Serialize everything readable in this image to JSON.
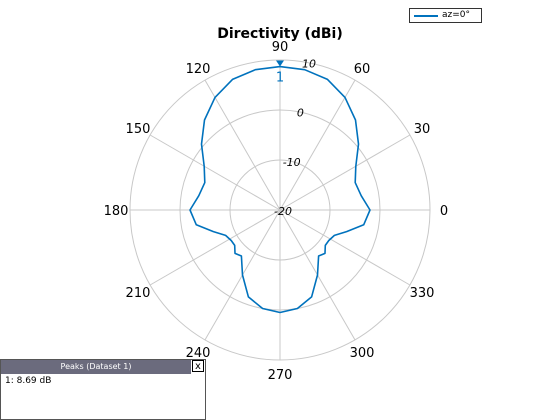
{
  "chart_data": {
    "type": "polar-line",
    "title": "Directivity (dBi)",
    "angle_ticks": [
      0,
      30,
      60,
      90,
      120,
      150,
      180,
      210,
      240,
      270,
      300,
      330
    ],
    "radial_ticks": [
      -20,
      -10,
      0,
      10
    ],
    "radial_range": [
      -20,
      10
    ],
    "grid": true,
    "legend_position": "top-right",
    "series": [
      {
        "name": "az=0°",
        "color": "#0072bd",
        "points": [
          {
            "angle": 0,
            "value": -2
          },
          {
            "angle": 10,
            "value": -3.5
          },
          {
            "angle": 20,
            "value": -4
          },
          {
            "angle": 30,
            "value": -2.5
          },
          {
            "angle": 40,
            "value": 0.5
          },
          {
            "angle": 50,
            "value": 3.5
          },
          {
            "angle": 60,
            "value": 6
          },
          {
            "angle": 70,
            "value": 7.8
          },
          {
            "angle": 80,
            "value": 8.5
          },
          {
            "angle": 90,
            "value": 8.69
          },
          {
            "angle": 100,
            "value": 8.5
          },
          {
            "angle": 110,
            "value": 7.8
          },
          {
            "angle": 120,
            "value": 6
          },
          {
            "angle": 130,
            "value": 3.5
          },
          {
            "angle": 140,
            "value": 0.5
          },
          {
            "angle": 150,
            "value": -2.5
          },
          {
            "angle": 160,
            "value": -4
          },
          {
            "angle": 170,
            "value": -3.5
          },
          {
            "angle": 180,
            "value": -2
          },
          {
            "angle": 190,
            "value": -3
          },
          {
            "angle": 198,
            "value": -6
          },
          {
            "angle": 205,
            "value": -8
          },
          {
            "angle": 212,
            "value": -8.5
          },
          {
            "angle": 218,
            "value": -8.5
          },
          {
            "angle": 224,
            "value": -7.5
          },
          {
            "angle": 230,
            "value": -8
          },
          {
            "angle": 240,
            "value": -5
          },
          {
            "angle": 250,
            "value": -1.5
          },
          {
            "angle": 260,
            "value": 0
          },
          {
            "angle": 270,
            "value": 0.5
          },
          {
            "angle": 280,
            "value": 0
          },
          {
            "angle": 290,
            "value": -1.5
          },
          {
            "angle": 300,
            "value": -5
          },
          {
            "angle": 310,
            "value": -8
          },
          {
            "angle": 316,
            "value": -7.5
          },
          {
            "angle": 322,
            "value": -8.5
          },
          {
            "angle": 328,
            "value": -8.5
          },
          {
            "angle": 335,
            "value": -8
          },
          {
            "angle": 342,
            "value": -6
          },
          {
            "angle": 350,
            "value": -3
          }
        ]
      }
    ],
    "marker": {
      "label": "1",
      "angle": 90,
      "value": 8.69
    }
  },
  "peaks_panel": {
    "title": "Peaks (Dataset 1)",
    "close_label": "x",
    "rows": [
      "1: 8.69 dB"
    ]
  }
}
